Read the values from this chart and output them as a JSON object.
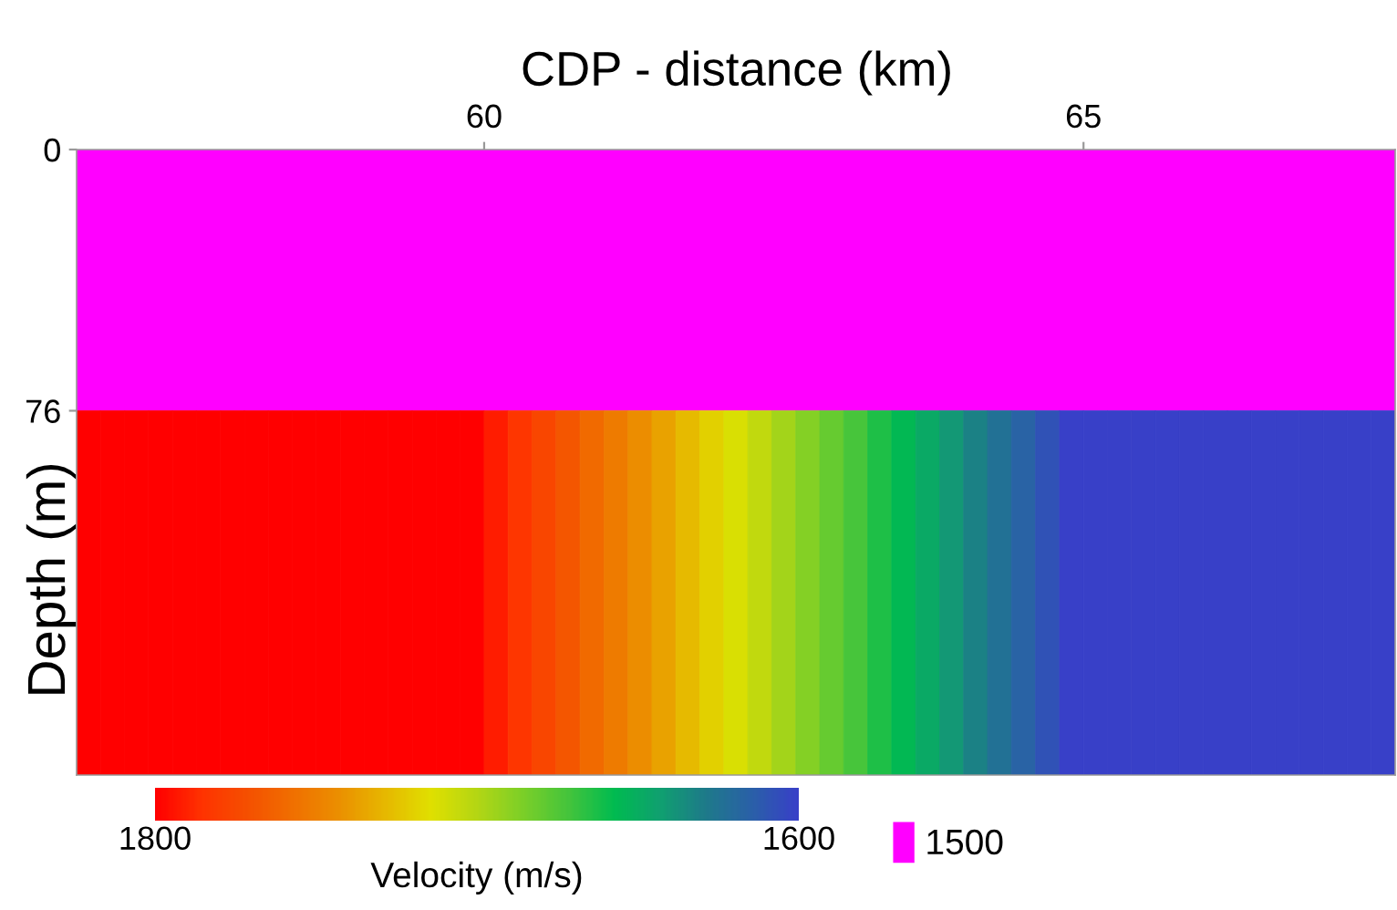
{
  "chart_data": {
    "type": "heatmap",
    "xlabel": "CDP - distance (km)",
    "ylabel": "Depth (m)",
    "clabel": "Velocity (m/s)",
    "cells": [
      [
        1800,
        1800,
        1800,
        1800,
        1800,
        1800,
        1800,
        1800,
        1800,
        1800,
        1800,
        1800,
        1800,
        1800,
        1800,
        1800,
        1800,
        1792,
        1784,
        1776,
        1768,
        1760,
        1752,
        1744,
        1736,
        1728,
        1720,
        1712,
        1704,
        1696,
        1688,
        1680,
        1672,
        1664,
        1656,
        1648,
        1640,
        1632,
        1624,
        1616,
        1608,
        1600,
        1600,
        1600,
        1600,
        1600,
        1600,
        1600,
        1600,
        1600,
        1600,
        1600,
        1600,
        1600,
        1600
      ]
    ],
    "bands": [
      {
        "axis": "y",
        "from": 0,
        "to": 76,
        "label": "1500",
        "color": "#ff00ff"
      }
    ],
    "legend": "bottom",
    "xlim": [
      56.6,
      67.6
    ],
    "xticks": [
      60,
      65
    ],
    "ylim": [
      182,
      0
    ],
    "yticks": [
      0,
      76
    ],
    "clim": [
      1600,
      1800
    ],
    "cticks": [
      1800,
      1600
    ],
    "grid": false
  }
}
